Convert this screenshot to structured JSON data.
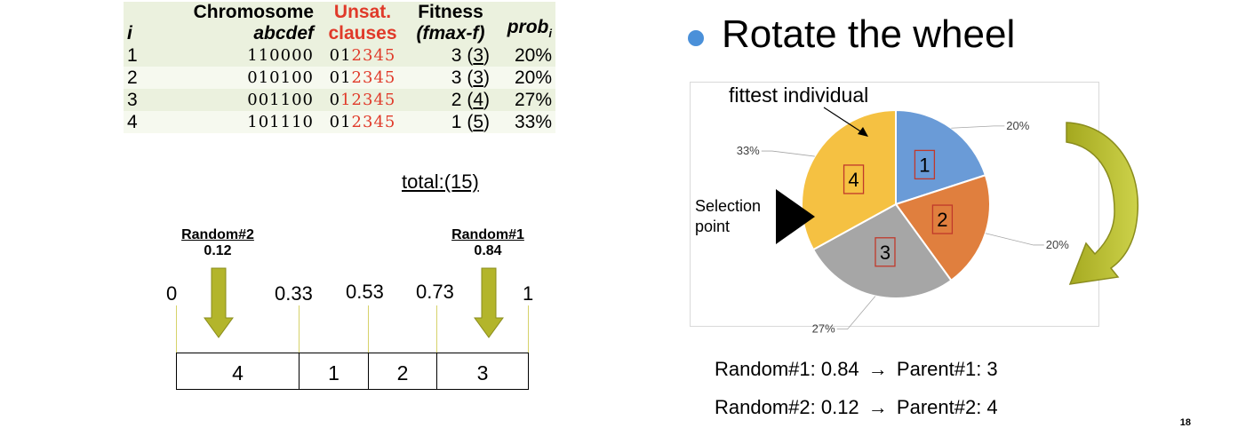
{
  "table": {
    "headers": {
      "i": "i",
      "chromosome_top": "Chromosome",
      "chromosome_bottom": "abcdef",
      "unsat_top": "Unsat.",
      "unsat_bottom": "clauses",
      "fitness_top": "Fitness",
      "fitness_bottom": "(fmax-f)",
      "prob": "prob",
      "prob_sub": "i"
    },
    "rows": [
      {
        "i": "1",
        "chromosome": "110000",
        "unsat_black": "01",
        "unsat_red": "2345",
        "fitness": "3",
        "fitness_paren": "3",
        "prob": "20%"
      },
      {
        "i": "2",
        "chromosome": "010100",
        "unsat_black": "01",
        "unsat_red": "2345",
        "fitness": "3",
        "fitness_paren": "3",
        "prob": "20%"
      },
      {
        "i": "3",
        "chromosome": "001100",
        "unsat_black": "0",
        "unsat_red": "12345",
        "fitness": "2",
        "fitness_paren": "4",
        "prob": "27%"
      },
      {
        "i": "4",
        "chromosome": "101110",
        "unsat_black": "01",
        "unsat_red": "2345",
        "fitness": "1",
        "fitness_paren": "5",
        "prob": "33%"
      }
    ],
    "total": "total:(15)"
  },
  "number_line": {
    "random2_label": "Random#2",
    "random2_value": "0.12",
    "random1_label": "Random#1",
    "random1_value": "0.84",
    "ticks": [
      "0",
      "0.33",
      "0.53",
      "0.73",
      "1"
    ],
    "segments": [
      "4",
      "1",
      "2",
      "3"
    ]
  },
  "right": {
    "title": "Rotate the wheel",
    "fittest_label": "fittest individual",
    "selection_label_1": "Selection",
    "selection_label_2": "point",
    "results": [
      {
        "random": "Random#1: 0.84",
        "arrow": "→",
        "parent": "Parent#1: 3"
      },
      {
        "random": "Random#2: 0.12",
        "arrow": "→",
        "parent": "Parent#2: 4"
      }
    ],
    "page_number": "18"
  },
  "chart_data": {
    "type": "pie",
    "categories": [
      "1",
      "2",
      "3",
      "4"
    ],
    "values": [
      20,
      20,
      27,
      33
    ],
    "data_labels": [
      "20%",
      "20%",
      "27%",
      "33%"
    ],
    "colors": [
      "#6a9bd7",
      "#e07f3e",
      "#a6a6a6",
      "#f5c142"
    ]
  }
}
